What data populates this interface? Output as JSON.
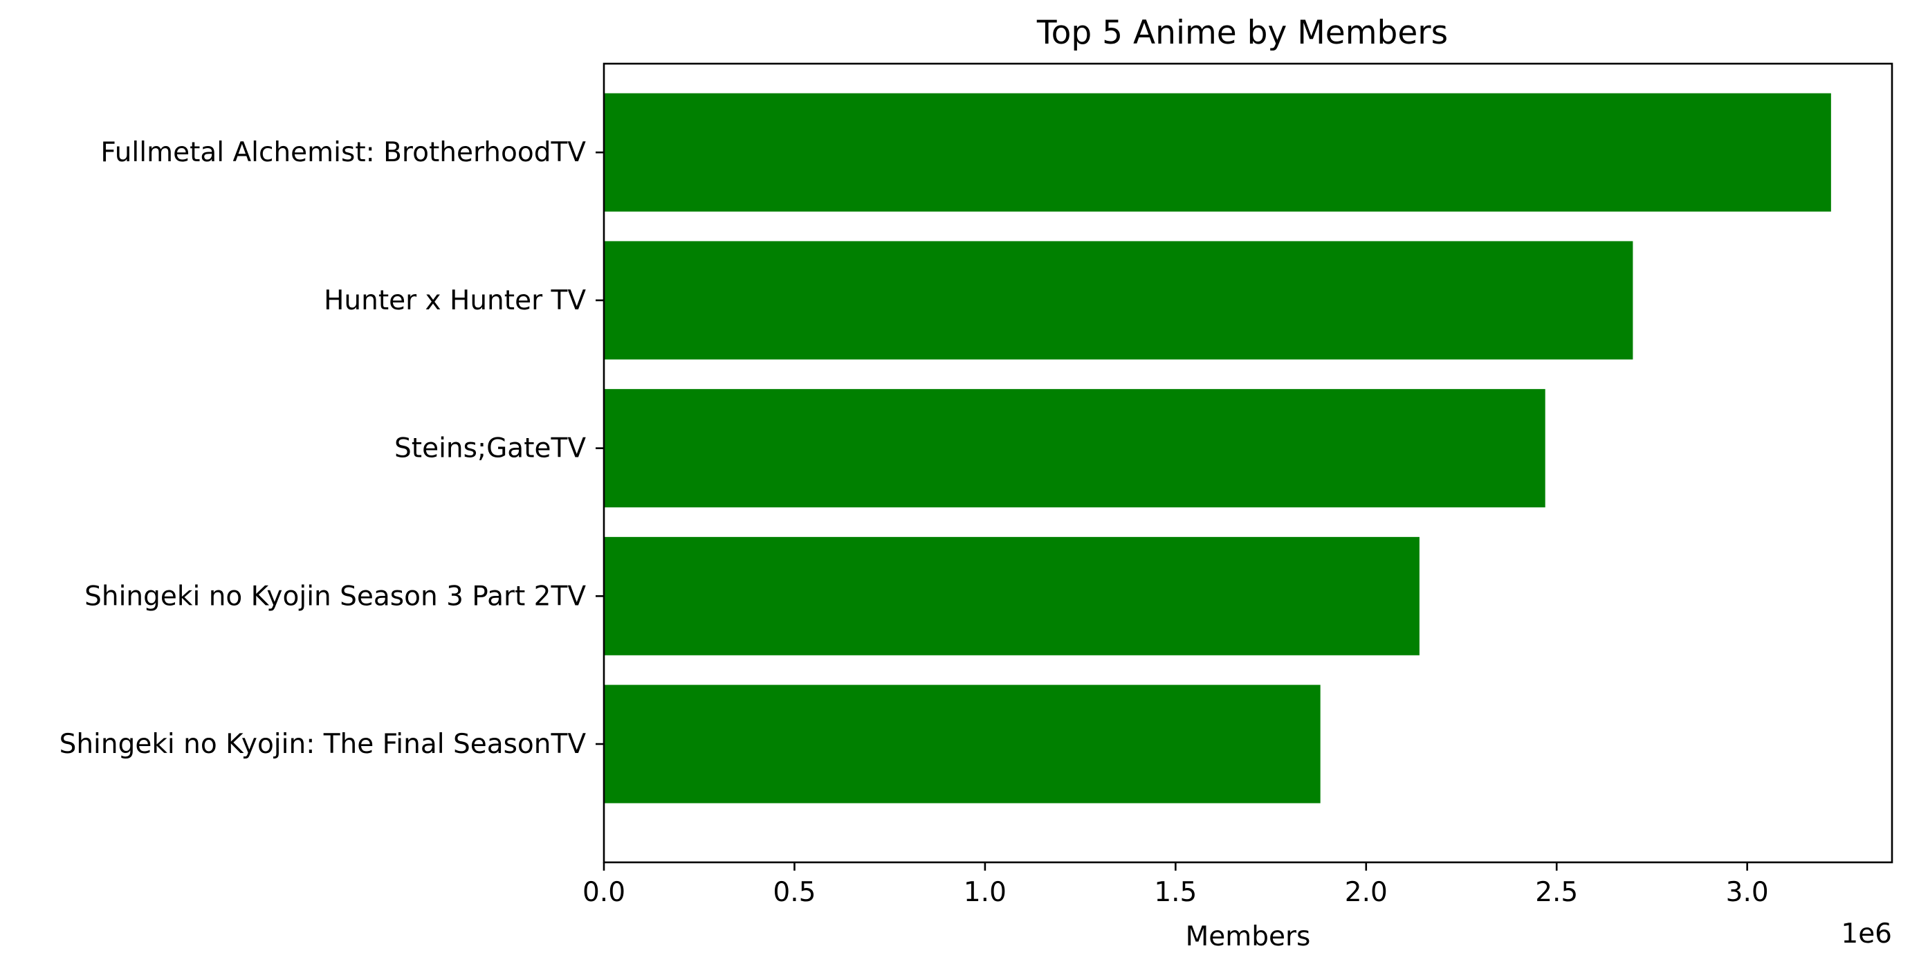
{
  "chart_data": {
    "type": "bar",
    "orientation": "horizontal",
    "title": "Top 5 Anime by Members",
    "xlabel": "Members",
    "ylabel": "",
    "x_offset_label": "1e6",
    "xlim": [
      0,
      3.38
    ],
    "x_ticks": [
      0.0,
      0.5,
      1.0,
      1.5,
      2.0,
      2.5,
      3.0
    ],
    "x_tick_labels": [
      "0.0",
      "0.5",
      "1.0",
      "1.5",
      "2.0",
      "2.5",
      "3.0"
    ],
    "categories": [
      "Fullmetal Alchemist: BrotherhoodTV",
      "Hunter x Hunter TV",
      "Steins;GateTV",
      "Shingeki no Kyojin Season 3 Part 2TV",
      "Shingeki no Kyojin: The Final SeasonTV"
    ],
    "values": [
      3.22,
      2.7,
      2.47,
      2.14,
      1.88
    ],
    "value_scale": 1000000,
    "bar_color": "#008000",
    "grid": false,
    "legend": "none"
  }
}
